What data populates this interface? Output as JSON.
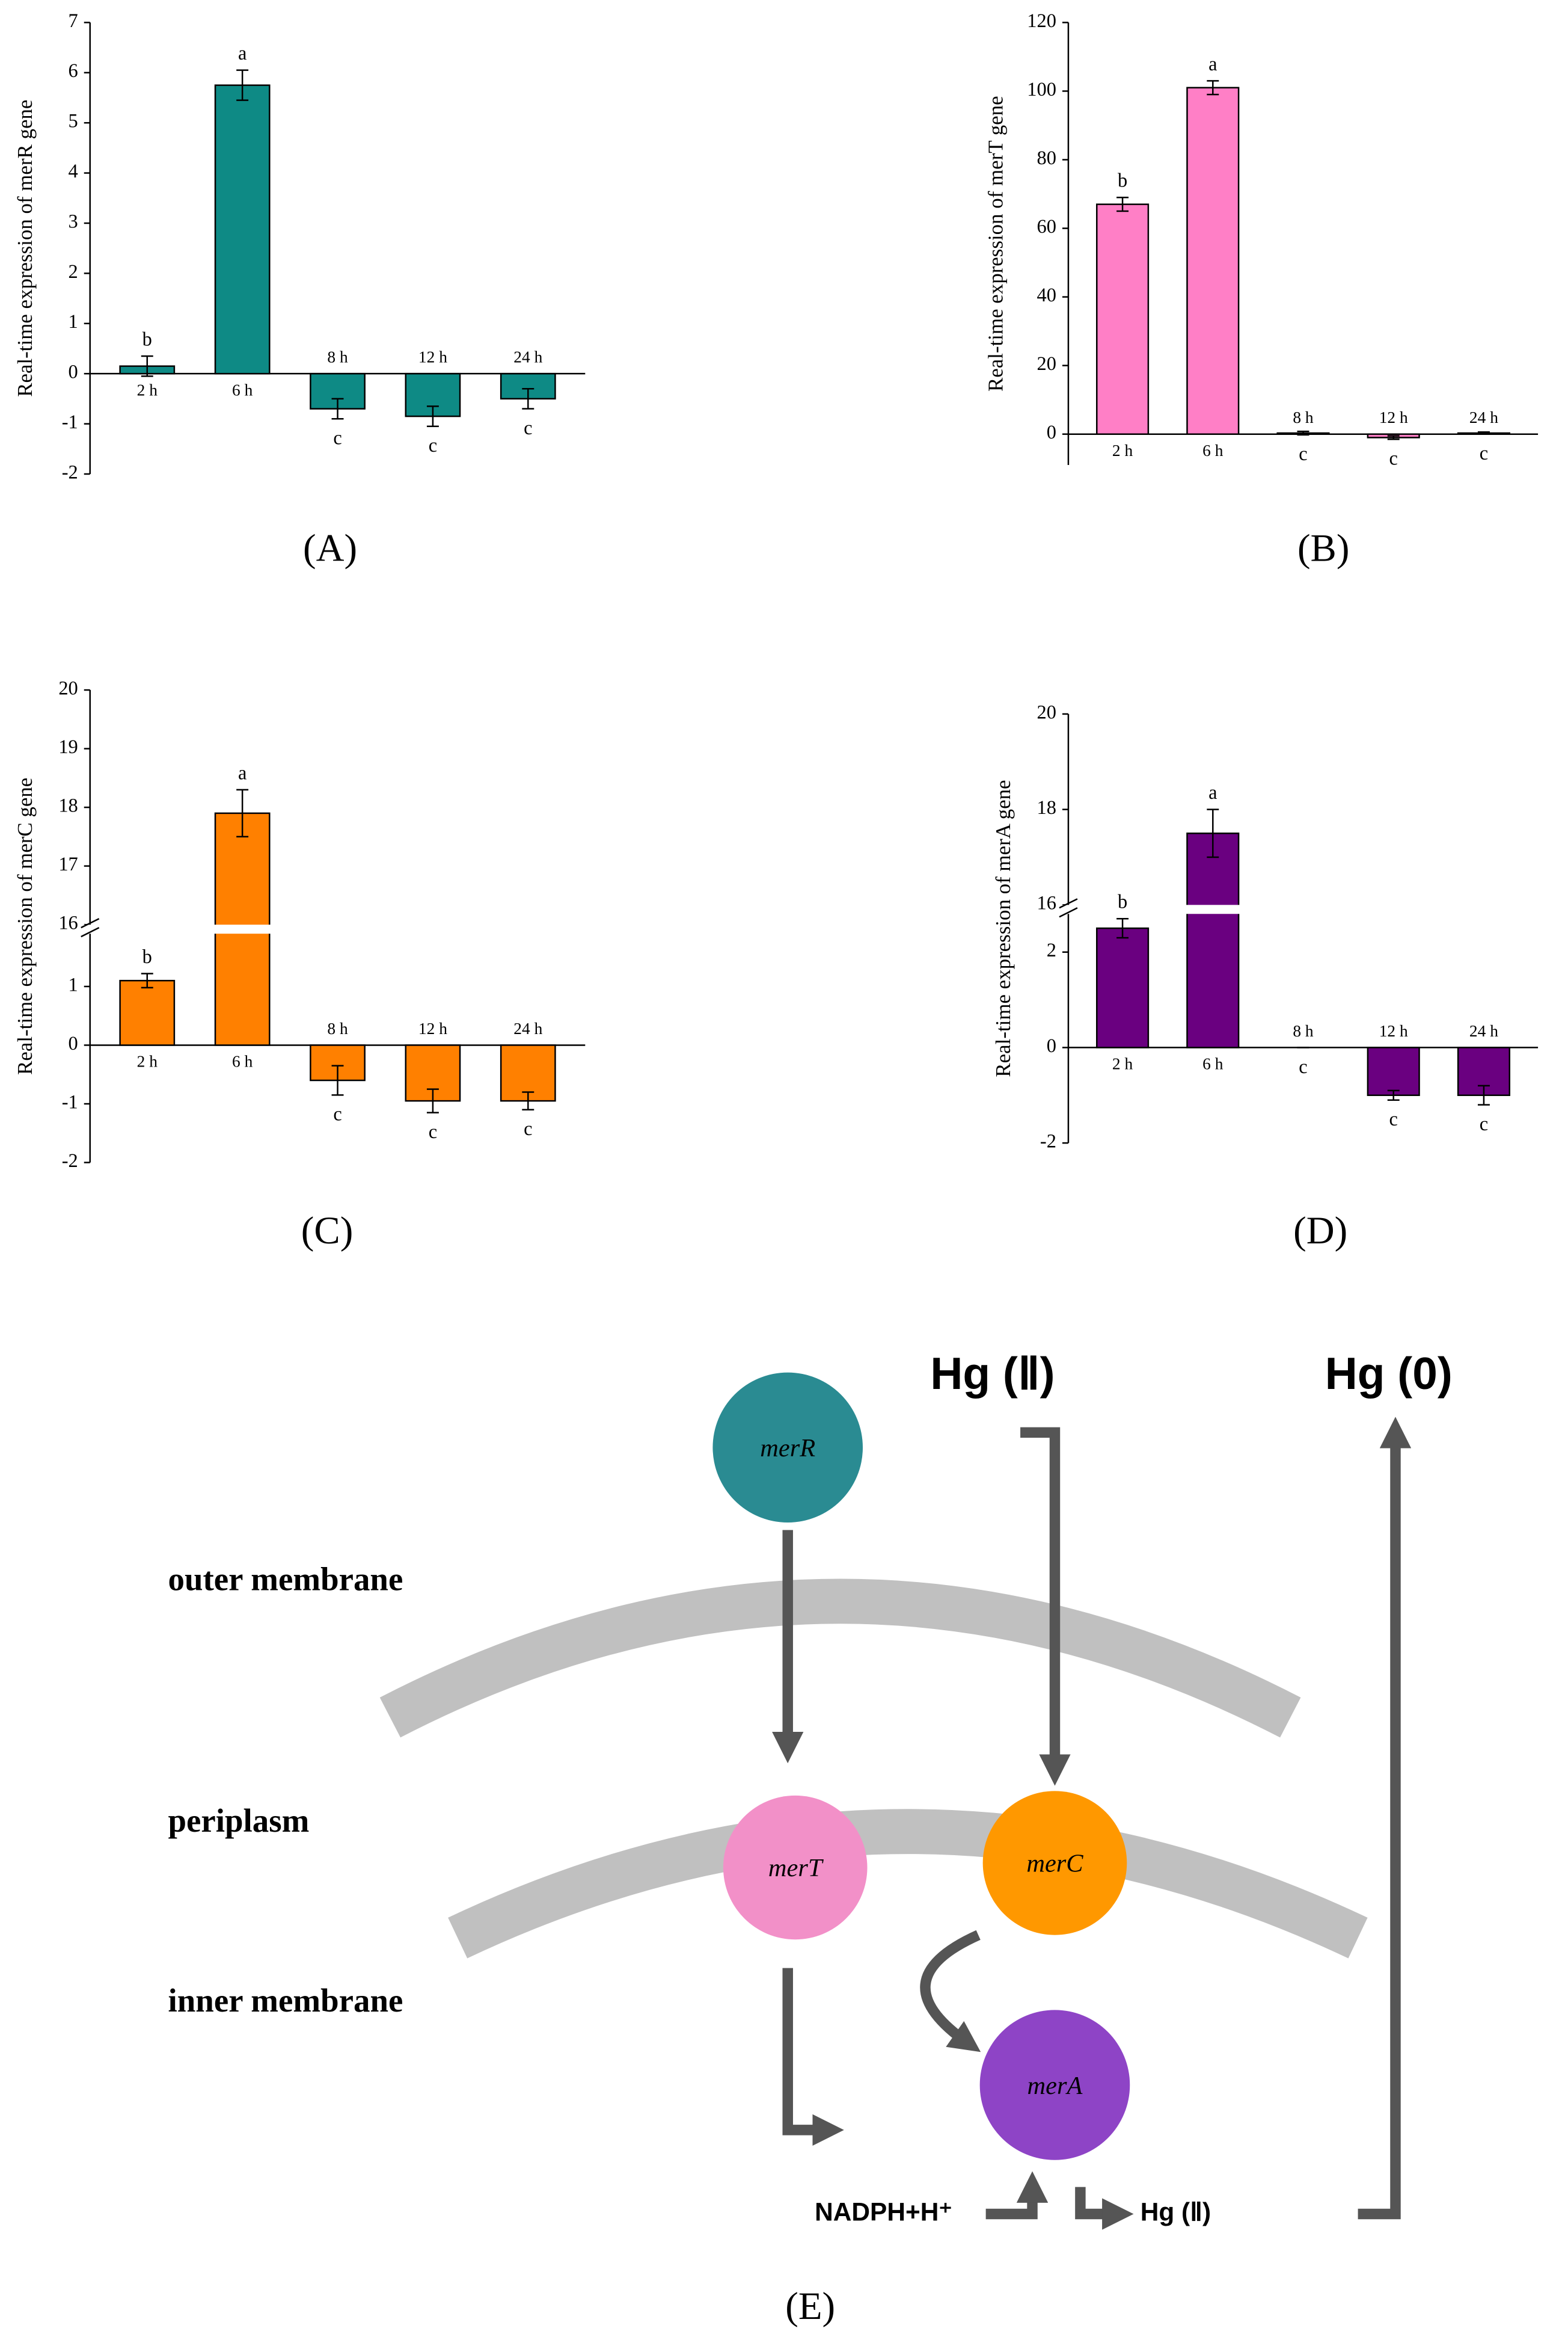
{
  "chart_data": [
    {
      "type": "bar",
      "panel_label": "(A)",
      "y_label": "Real-time expression of merR gene",
      "categories": [
        "2 h",
        "6 h",
        "8 h",
        "12 h",
        "24 h"
      ],
      "values": [
        0.15,
        5.75,
        -0.7,
        -0.85,
        -0.5
      ],
      "errors": [
        0.2,
        0.3,
        0.2,
        0.2,
        0.2
      ],
      "significance": [
        "b",
        "a",
        "c",
        "c",
        "c"
      ],
      "color": "#0e8a85",
      "ylim": [
        -2,
        7
      ],
      "yticks": [
        -2,
        -1,
        0,
        1,
        2,
        3,
        4,
        5,
        6,
        7
      ]
    },
    {
      "type": "bar",
      "panel_label": "(B)",
      "y_label": "Real-time expression of merT gene",
      "categories": [
        "2 h",
        "6 h",
        "8 h",
        "12 h",
        "24 h"
      ],
      "values": [
        67,
        101,
        0.3,
        -1,
        0.3
      ],
      "errors": [
        2,
        2,
        0.5,
        0.5,
        0.3
      ],
      "significance": [
        "b",
        "a",
        "c",
        "c",
        "c"
      ],
      "color": "#ff7fc6",
      "ylim": [
        -9,
        120
      ],
      "yticks": [
        0,
        20,
        40,
        60,
        80,
        100,
        120
      ]
    },
    {
      "type": "bar",
      "panel_label": "(C)",
      "y_label": "Real-time expression of merC gene",
      "categories": [
        "2 h",
        "6 h",
        "8 h",
        "12 h",
        "24 h"
      ],
      "values": [
        1.1,
        17.9,
        -0.6,
        -0.95,
        -0.95
      ],
      "errors": [
        0.12,
        0.4,
        0.25,
        0.2,
        0.15
      ],
      "significance": [
        "b",
        "a",
        "c",
        "c",
        "c"
      ],
      "color": "#ff8000",
      "ylim": [
        -2,
        20
      ],
      "y_break": [
        1.9,
        16
      ],
      "yticks": [
        -2,
        -1,
        0,
        1,
        16,
        17,
        18,
        19,
        20
      ]
    },
    {
      "type": "bar",
      "panel_label": "(D)",
      "y_label": "Real-time expression of merA gene",
      "categories": [
        "2 h",
        "6 h",
        "8 h",
        "12 h",
        "24 h"
      ],
      "values": [
        2.5,
        17.5,
        0,
        -1,
        -1
      ],
      "errors": [
        0.2,
        0.5,
        0,
        0.1,
        0.2
      ],
      "significance": [
        "b",
        "a",
        "c",
        "c",
        "c"
      ],
      "color": "#6a0080",
      "ylim": [
        -2,
        20
      ],
      "y_break": [
        2.8,
        16
      ],
      "yticks": [
        -2,
        0,
        2,
        16,
        18,
        20
      ]
    }
  ],
  "diagram": {
    "layers": [
      "outer membrane",
      "periplasm",
      "inner membrane"
    ],
    "nodes": [
      {
        "label": "merR"
      },
      {
        "label": "merT"
      },
      {
        "label": "merC"
      },
      {
        "label": "merA"
      }
    ],
    "species": {
      "input": "Hg (Ⅱ)",
      "output": "Hg (0)",
      "cofactor": "NADPH+H⁺",
      "substrate": "Hg (Ⅱ)"
    },
    "panel_label": "(E)"
  }
}
